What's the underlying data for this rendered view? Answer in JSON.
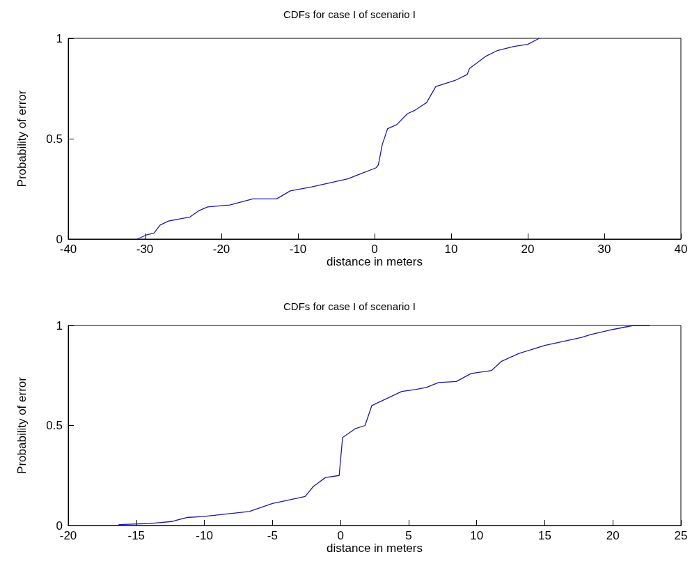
{
  "chart_data": [
    {
      "type": "line",
      "title": "CDFs for case I of scenario I",
      "xlabel": "distance in meters",
      "ylabel": "Probability of error",
      "xlim": [
        -40,
        40
      ],
      "xticks": [
        -40,
        -30,
        -20,
        -10,
        0,
        10,
        20,
        30,
        40
      ],
      "ylim": [
        0,
        1
      ],
      "yticks": [
        0,
        0.5,
        1
      ],
      "grid": false,
      "marker": "none",
      "line_style": "solid",
      "series": [
        {
          "color": "#1a1aa6",
          "x": [
            -31.0,
            -29.8,
            -28.8,
            -28.0,
            -26.9,
            -24.1,
            -23.0,
            -21.8,
            -18.9,
            -15.9,
            -12.8,
            -11.0,
            -8.2,
            -3.5,
            0.2,
            0.5,
            1.0,
            1.7,
            2.9,
            4.3,
            5.2,
            6.4,
            6.8,
            8.0,
            10.5,
            12.1,
            12.4,
            14.5,
            16.1,
            18.2,
            20.0,
            21.5
          ],
          "values": [
            0,
            0.02,
            0.03,
            0.07,
            0.09,
            0.11,
            0.14,
            0.16,
            0.17,
            0.2,
            0.2,
            0.24,
            0.26,
            0.3,
            0.355,
            0.37,
            0.47,
            0.55,
            0.57,
            0.625,
            0.64,
            0.67,
            0.68,
            0.76,
            0.79,
            0.82,
            0.85,
            0.91,
            0.94,
            0.96,
            0.97,
            1
          ]
        }
      ]
    },
    {
      "type": "line",
      "title": "CDFs for case I of scenario I",
      "xlabel": "distance in meters",
      "ylabel": "Probability of error",
      "xlim": [
        -20,
        25
      ],
      "xticks": [
        -20,
        -15,
        -10,
        -5,
        0,
        5,
        10,
        15,
        20,
        25
      ],
      "ylim": [
        0,
        1
      ],
      "yticks": [
        0,
        0.5,
        1
      ],
      "grid": false,
      "marker": "none",
      "line_style": "solid",
      "series": [
        {
          "color": "#1a1aa6",
          "x": [
            -16.3,
            -14.0,
            -12.4,
            -11.3,
            -10.1,
            -6.7,
            -5.0,
            -2.6,
            -2.0,
            -1.1,
            -0.1,
            0.15,
            1.1,
            1.8,
            2.3,
            4.5,
            5.5,
            6.3,
            7.2,
            8.5,
            9.6,
            11.1,
            11.8,
            13.1,
            15.0,
            17.0,
            17.7,
            18.4,
            20.0,
            21.5,
            22.7
          ],
          "values": [
            0.005,
            0.01,
            0.02,
            0.04,
            0.045,
            0.07,
            0.11,
            0.145,
            0.195,
            0.24,
            0.25,
            0.44,
            0.485,
            0.5,
            0.6,
            0.67,
            0.68,
            0.69,
            0.715,
            0.72,
            0.76,
            0.775,
            0.82,
            0.86,
            0.9,
            0.93,
            0.94,
            0.955,
            0.98,
            1,
            1
          ]
        }
      ]
    }
  ]
}
